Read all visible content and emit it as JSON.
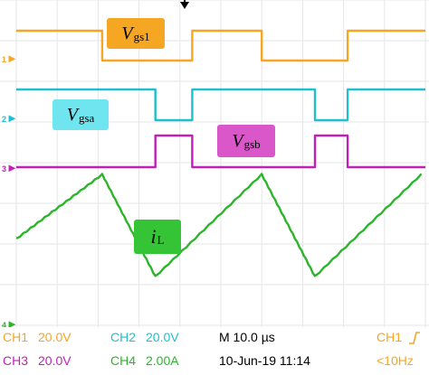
{
  "chart_data": {
    "type": "line",
    "time_unit": "us",
    "x_range": [
      0,
      100
    ],
    "grid": true,
    "series": [
      {
        "name": "Vgs1",
        "id": "ch1",
        "marker": "1",
        "color": "#f5a623",
        "x": [
          0,
          21,
          21,
          43,
          43,
          60,
          60,
          81,
          81,
          100
        ],
        "y": [
          1,
          1,
          0,
          0,
          1,
          1,
          0,
          0,
          1,
          1
        ]
      },
      {
        "name": "Vgsa",
        "id": "ch2",
        "marker": "2",
        "color": "#1fbfcf",
        "x": [
          0,
          34,
          34,
          43,
          43,
          73,
          73,
          81,
          81,
          100
        ],
        "y": [
          1,
          1,
          0,
          0,
          1,
          1,
          0,
          0,
          1,
          1
        ]
      },
      {
        "name": "Vgsb",
        "id": "ch3",
        "marker": "3",
        "color": "#c21fb8",
        "x": [
          0,
          34,
          34,
          43,
          43,
          73,
          73,
          81,
          81,
          100
        ],
        "y": [
          0,
          0,
          1,
          1,
          0,
          0,
          1,
          1,
          0,
          0
        ]
      },
      {
        "name": "iL",
        "id": "ch4",
        "marker": "4",
        "color": "#2cb52c",
        "x": [
          0,
          21,
          34,
          60,
          73,
          99
        ],
        "y": [
          0.4,
          1.0,
          0.05,
          1.0,
          0.05,
          1.0
        ]
      }
    ],
    "labels": [
      {
        "base": "V",
        "sub": "gs1",
        "series": "ch1"
      },
      {
        "base": "V",
        "sub": "gsa",
        "series": "ch2"
      },
      {
        "base": "V",
        "sub": "gsb",
        "series": "ch3"
      },
      {
        "base": "i",
        "sub": "L",
        "series": "ch4"
      }
    ]
  },
  "status": {
    "ch1": {
      "name": "CH1",
      "scale": "20.0V"
    },
    "ch2": {
      "name": "CH2",
      "scale": "20.0V"
    },
    "ch3": {
      "name": "CH3",
      "scale": "20.0V"
    },
    "ch4": {
      "name": "CH4",
      "scale": "2.00A"
    },
    "timebase": "M 10.0 µs",
    "date": "10-Jun-19 11:14",
    "trigger": {
      "source": "CH1",
      "edge_icon": "rising-edge-icon",
      "freq": "<10Hz"
    }
  },
  "colors": {
    "ch1": "#f5a623",
    "ch2": "#1fbfcf",
    "ch3": "#c21fb8",
    "ch4": "#2cb52c",
    "label_text": "#000000",
    "status_text": "#000000"
  }
}
